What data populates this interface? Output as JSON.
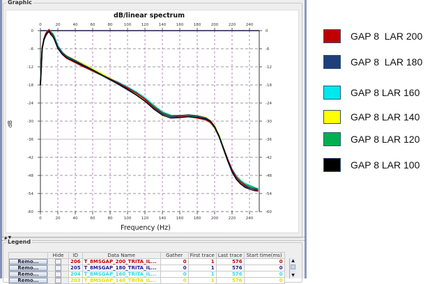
{
  "graphic_panel": {
    "title": "Graphic"
  },
  "legend_panel": {
    "title": "Legend"
  },
  "splitter": {
    "arrows": "▲▼"
  },
  "chart_data": {
    "type": "line",
    "title": "dB/linear  spectrum",
    "xlabel": "Frequency (Hz)",
    "ylabel": "dB",
    "xlim": [
      0,
      250
    ],
    "ylim": [
      -60,
      0
    ],
    "x_ticks": [
      0,
      20,
      40,
      60,
      80,
      100,
      120,
      140,
      160,
      180,
      200,
      220,
      240
    ],
    "y_ticks": [
      0,
      -6,
      -12,
      -18,
      -24,
      -30,
      -36,
      -42,
      -48,
      -54,
      -60
    ],
    "y_tick_labels": [
      "0",
      "-6",
      "-12",
      "-18",
      "-24",
      "-30",
      "-36",
      "-42",
      "-48",
      "-54",
      "-60"
    ],
    "grid": true,
    "x": [
      0,
      2,
      4,
      6,
      8,
      10,
      12,
      14,
      16,
      20,
      25,
      30,
      40,
      50,
      60,
      70,
      80,
      90,
      100,
      110,
      120,
      130,
      140,
      150,
      160,
      170,
      180,
      190,
      195,
      200,
      205,
      210,
      215,
      220,
      225,
      230,
      235,
      240,
      245,
      250
    ],
    "series": [
      {
        "name": "GAP 8 LAR 200",
        "color": "#c00000",
        "values": [
          -18,
          -6,
          -3,
          -1.5,
          -0.5,
          0,
          -1,
          -1.5,
          -2.5,
          -5.5,
          -7.5,
          -8.8,
          -10.3,
          -11.8,
          -13.2,
          -14.7,
          -16.2,
          -17.7,
          -19.3,
          -21,
          -23,
          -25.5,
          -27.5,
          -28.5,
          -28.4,
          -28.2,
          -28.6,
          -29.3,
          -30.2,
          -32,
          -35,
          -39,
          -43,
          -46.5,
          -49,
          -50.5,
          -51.5,
          -52,
          -52.5,
          -52.8
        ]
      },
      {
        "name": "GAP 8 LAR 180",
        "color": "#1f3f7a",
        "values": [
          -18,
          -6,
          -3,
          -1.5,
          -0.5,
          0,
          -1,
          -1.5,
          -2.5,
          -5.5,
          -7.5,
          -8.8,
          -10.3,
          -11.8,
          -13.2,
          -14.7,
          -16.2,
          -17.7,
          -19.3,
          -21,
          -23,
          -25.5,
          -27.5,
          -28.5,
          -28.4,
          -28.2,
          -28.6,
          -29.3,
          -30.2,
          -32,
          -35,
          -39,
          -43,
          -46.5,
          -49,
          -50.5,
          -51.5,
          -52,
          -52.5,
          -52.8
        ]
      },
      {
        "name": "GAP 8 LAR 160",
        "color": "#00e5ee",
        "values": [
          -17,
          -5.5,
          -2.8,
          -1.2,
          -0.3,
          0,
          -0.8,
          -1.2,
          -2.2,
          -5,
          -7,
          -8.3,
          -9.8,
          -11.3,
          -12.8,
          -14.2,
          -15.8,
          -17.3,
          -18.9,
          -20.6,
          -22.6,
          -25,
          -27.2,
          -28.2,
          -28.1,
          -27.9,
          -28.3,
          -29,
          -30,
          -31.8,
          -34.8,
          -38.8,
          -42.8,
          -46.2,
          -48.5,
          -50,
          -51,
          -51.5,
          -52,
          -52.4
        ]
      },
      {
        "name": "GAP 8 LAR 140",
        "color": "#ffff00",
        "values": [
          -17.5,
          -5.8,
          -2.9,
          -1.3,
          -0.4,
          0,
          -0.9,
          -1.3,
          -2.3,
          -5.2,
          -7.2,
          -8.5,
          -10,
          -11.5,
          -13,
          -14.4,
          -16,
          -17.5,
          -19.1,
          -20.8,
          -22.8,
          -25.2,
          -27.3,
          -28.3,
          -28.2,
          -28,
          -28.4,
          -29.1,
          -30.1,
          -31.9,
          -34.9,
          -38.9,
          -42.9,
          -46.3,
          -48.7,
          -50.2,
          -51.2,
          -51.7,
          -52.2,
          -52.6
        ]
      },
      {
        "name": "GAP 8 LAR 120",
        "color": "#00b050",
        "values": [
          -17.5,
          -5.8,
          -2.9,
          -1.3,
          -0.4,
          0,
          -0.9,
          -1.3,
          -2.3,
          -5.3,
          -7.3,
          -8.6,
          -10.1,
          -11.6,
          -13.1,
          -14.5,
          -16.1,
          -17.6,
          -19.2,
          -20.9,
          -22.9,
          -25.3,
          -27.4,
          -28.4,
          -28.3,
          -28.1,
          -28.5,
          -29.2,
          -30.1,
          -31.9,
          -34.9,
          -38.9,
          -42.9,
          -46.4,
          -48.8,
          -50.3,
          -51.3,
          -51.8,
          -52.3,
          -52.7
        ]
      },
      {
        "name": "GAP 8 LAR 100",
        "color": "#000000",
        "values": [
          -18.5,
          -6.2,
          -3.2,
          -1.6,
          -0.6,
          0,
          -1.1,
          -1.6,
          -2.7,
          -5.7,
          -7.7,
          -9,
          -10.5,
          -12,
          -13.4,
          -14.9,
          -16.4,
          -17.9,
          -19.5,
          -21.2,
          -23.2,
          -25.7,
          -27.7,
          -28.7,
          -28.6,
          -28.4,
          -28.8,
          -29.5,
          -30.4,
          -32.2,
          -35.2,
          -39.2,
          -43.2,
          -46.7,
          -49.2,
          -50.7,
          -51.7,
          -52.2,
          -52.7,
          -53
        ]
      }
    ],
    "legend_position": "right (external)"
  },
  "external_legend": {
    "items": [
      {
        "label": "GAP 8  LAR 200",
        "color": "#c00000"
      },
      {
        "label": "GAP 8  LAR 180",
        "color": "#1f3f7a"
      },
      {
        "label": "GAP 8 LAR 160",
        "color": "#00e8ef"
      },
      {
        "label": "GAP 8 LAR 140",
        "color": "#ffff00"
      },
      {
        "label": "GAP 8 LAR 120",
        "color": "#00b050"
      },
      {
        "label": "GAP 8 LAR 100",
        "color": "#000000"
      }
    ]
  },
  "legend_table": {
    "columns": [
      "",
      "Hide",
      "ID",
      "Data Name",
      "Gather",
      "First trace",
      "Last trace",
      "Start time(ms)"
    ],
    "rows": [
      {
        "button": "Remo...",
        "id": "206",
        "name": "T_8MSGAP_200_TRITA_IL...",
        "gather": "0",
        "first": "1",
        "last": "576",
        "start": "0",
        "color": "#c00000"
      },
      {
        "button": "Remo...",
        "id": "205",
        "name": "T_8MSGAP_180_TRITA_IL...",
        "gather": "0",
        "first": "1",
        "last": "576",
        "start": "0",
        "color": "#1a1a8c"
      },
      {
        "button": "Remo...",
        "id": "204",
        "name": "T_8MSGAP_160_TRITA_IL...",
        "gather": "0",
        "first": "1",
        "last": "576",
        "start": "0",
        "color": "#30d8e0"
      },
      {
        "button": "Remo...",
        "id": "203",
        "name": "T_8MSGAP_140_TRITA_IL...",
        "gather": "0",
        "first": "1",
        "last": "576",
        "start": "0",
        "color": "#e0e000"
      }
    ],
    "scroll_up": "▲",
    "scroll_down": "▼"
  }
}
